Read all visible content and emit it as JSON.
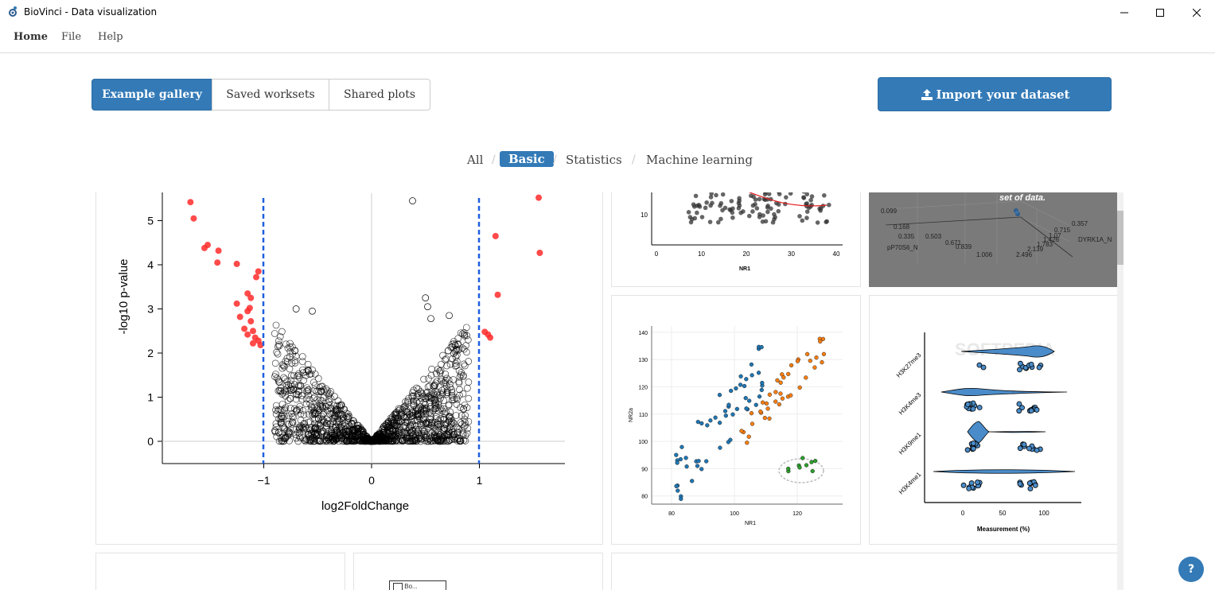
{
  "window": {
    "title": "BioVinci - Data visualization"
  },
  "menu": {
    "items": [
      "Home",
      "File",
      "Help"
    ]
  },
  "tabs": [
    "Example gallery",
    "Saved worksets",
    "Shared plots"
  ],
  "import_button": {
    "label": "Import your dataset"
  },
  "filters": [
    "All",
    "Basic",
    "Statistics",
    "Machine learning"
  ],
  "help_label": "?",
  "volcano": {
    "xlabel": "log2FoldChange",
    "ylabel": "-log10 p-value",
    "xticks": [
      "−1",
      "0",
      "1"
    ],
    "yticks": [
      "0",
      "1",
      "2",
      "3",
      "4",
      "5"
    ]
  },
  "scatter_top": {
    "xlabel": "NR1",
    "xticks": [
      "0",
      "10",
      "20",
      "30",
      "40"
    ],
    "yticks": [
      "10"
    ]
  },
  "pca3d": {
    "caption": "set of data.",
    "axis_x_label": "pP70S6_N",
    "axis_x_ticks": [
      "0.099",
      "0.168",
      "0.335",
      "0.503",
      "0.671",
      "0.839",
      "1.006"
    ],
    "axis_y_label": "DYRK1A_N",
    "axis_y_ticks": [
      "0.357",
      "0.715",
      "1.07",
      "1.426",
      "1.783",
      "2.139",
      "2.496"
    ]
  },
  "cluster": {
    "xlabel": "NR1",
    "ylabel": "NR2a",
    "xticks": [
      "80",
      "100",
      "120"
    ],
    "yticks": [
      "80",
      "90",
      "100",
      "110",
      "120",
      "130",
      "140"
    ]
  },
  "violin": {
    "xlabel": "Measurement (%)",
    "xticks": [
      "0",
      "50",
      "100"
    ],
    "categories": [
      "H3K27me3",
      "H3K4me3",
      "H3K9me1",
      "H3K4me1"
    ],
    "watermark": "SOFTPEDIA"
  },
  "bottom_card": {
    "label": "Bo..."
  }
}
